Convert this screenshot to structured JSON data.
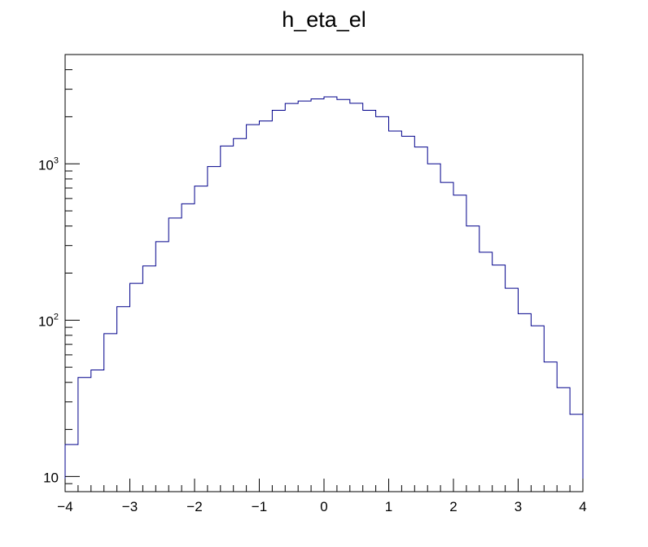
{
  "chart_data": {
    "type": "histogram",
    "title": "h_eta_el",
    "xlabel": "",
    "ylabel": "",
    "xlim": [
      -4,
      4
    ],
    "ylim": [
      8,
      5000
    ],
    "yscale": "log",
    "grid": false,
    "legend": "none",
    "line_color": "#00008b",
    "bin_edges": [
      -4.0,
      -3.8,
      -3.6,
      -3.4,
      -3.2,
      -3.0,
      -2.8,
      -2.6,
      -2.4,
      -2.2,
      -2.0,
      -1.8,
      -1.6,
      -1.4,
      -1.2,
      -1.0,
      -0.8,
      -0.6,
      -0.4,
      -0.2,
      0.0,
      0.2,
      0.4,
      0.6,
      0.8,
      1.0,
      1.2,
      1.4,
      1.6,
      1.8,
      2.0,
      2.2,
      2.4,
      2.6,
      2.8,
      3.0,
      3.2,
      3.4,
      3.6,
      3.8,
      4.0
    ],
    "values": [
      16,
      43,
      48,
      82,
      122,
      172,
      222,
      318,
      450,
      555,
      720,
      960,
      1300,
      1450,
      1780,
      1880,
      2200,
      2430,
      2520,
      2600,
      2680,
      2580,
      2440,
      2200,
      2000,
      1620,
      1500,
      1280,
      1000,
      760,
      630,
      400,
      272,
      225,
      160,
      110,
      92,
      54,
      37,
      25
    ],
    "x_ticks": [
      "−4",
      "−3",
      "−2",
      "−1",
      "0",
      "1",
      "2",
      "3",
      "4"
    ],
    "y_ticks": [
      {
        "value": 10,
        "base": "10",
        "exp": ""
      },
      {
        "value": 100,
        "base": "10",
        "exp": "2"
      },
      {
        "value": 1000,
        "base": "10",
        "exp": "3"
      }
    ]
  }
}
